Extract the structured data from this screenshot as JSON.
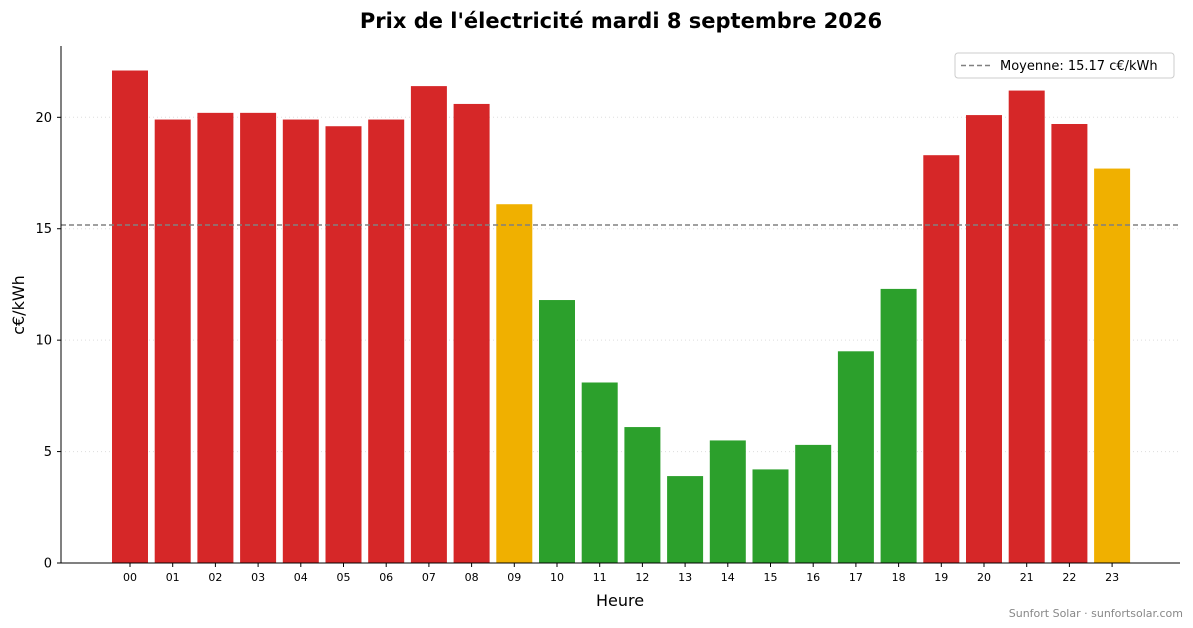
{
  "chart_data": {
    "type": "bar",
    "title": "Prix de l'électricité mardi 8 septembre 2026",
    "xlabel": "Heure",
    "ylabel": "c€/kWh",
    "categories": [
      "00",
      "01",
      "02",
      "03",
      "04",
      "05",
      "06",
      "07",
      "08",
      "09",
      "10",
      "11",
      "12",
      "13",
      "14",
      "15",
      "16",
      "17",
      "18",
      "19",
      "20",
      "21",
      "22",
      "23"
    ],
    "values": [
      22.1,
      19.9,
      20.2,
      20.2,
      19.9,
      19.6,
      19.9,
      21.4,
      20.6,
      16.1,
      11.8,
      8.1,
      6.1,
      3.9,
      5.5,
      4.2,
      5.3,
      9.5,
      12.3,
      18.3,
      20.1,
      21.2,
      19.7,
      17.7
    ],
    "bar_levels": [
      "high",
      "high",
      "high",
      "high",
      "high",
      "high",
      "high",
      "high",
      "high",
      "mid",
      "low",
      "low",
      "low",
      "low",
      "low",
      "low",
      "low",
      "low",
      "low",
      "high",
      "high",
      "high",
      "high",
      "mid"
    ],
    "level_colors": {
      "high": "#d62728",
      "mid": "#f0b000",
      "low": "#2ca02c"
    },
    "ylim": [
      0,
      23.2
    ],
    "yticks": [
      0,
      5,
      10,
      15,
      20
    ],
    "grid": true,
    "average": {
      "value": 15.17,
      "label": "Moyenne: 15.17 c€/kWh",
      "color": "#808080"
    },
    "legend_position": "top-right",
    "watermark": "Sunfort Solar · sunfortsolar.com"
  }
}
